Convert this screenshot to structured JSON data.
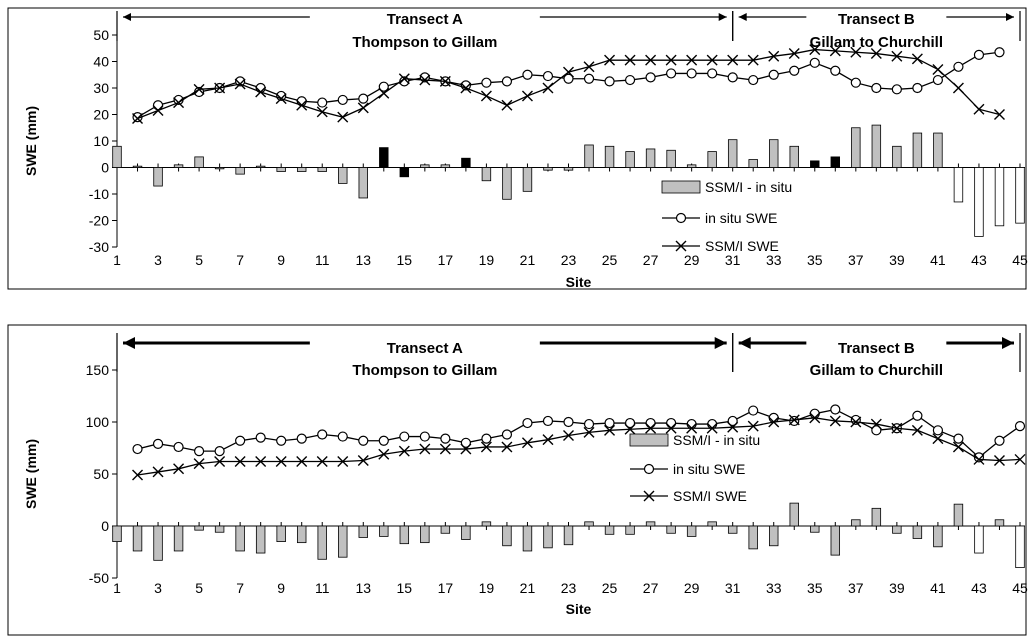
{
  "chart_data": [
    {
      "type": "bar+line",
      "xlabel": "Site",
      "ylabel": "SWE (mm)",
      "ylim": [
        -30,
        50
      ],
      "yticks": [
        50,
        40,
        30,
        20,
        10,
        0,
        -10,
        -20,
        -30
      ],
      "xlim": [
        1,
        45
      ],
      "xticks": [
        "1",
        "3",
        "5",
        "7",
        "9",
        "11",
        "13",
        "15",
        "17",
        "19",
        "21",
        "23",
        "25",
        "27",
        "29",
        "31",
        "33",
        "35",
        "37",
        "39",
        "41",
        "43",
        "45"
      ],
      "transects": [
        {
          "title": "Transect A",
          "subtitle": "Thompson to Gillam",
          "from": 1,
          "to": 31
        },
        {
          "title": "Transect B",
          "subtitle": "Gillam to Churchill",
          "from": 31,
          "to": 45
        }
      ],
      "legend": {
        "bars": "SSM/I - in situ",
        "insitu": "in situ SWE",
        "ssmi": "SSM/I SWE"
      },
      "series": [
        {
          "name": "SSM/I - in situ",
          "kind": "bar",
          "x": [
            1,
            2,
            3,
            4,
            5,
            6,
            7,
            8,
            9,
            10,
            11,
            12,
            13,
            14,
            15,
            16,
            17,
            18,
            19,
            20,
            21,
            22,
            23,
            24,
            25,
            26,
            27,
            28,
            29,
            30,
            31,
            32,
            33,
            34,
            35,
            36,
            37,
            38,
            39,
            40,
            41,
            42,
            43,
            44,
            45
          ],
          "values": [
            8,
            0.5,
            -7,
            1,
            4,
            -0.5,
            -2.5,
            0.5,
            -1.5,
            -1.5,
            -1.5,
            -6,
            -11.5,
            7.5,
            -3.5,
            1,
            1,
            3.5,
            -5,
            -12,
            -9,
            -1,
            -1,
            8.5,
            8,
            6,
            7,
            6.5,
            1,
            6,
            10.5,
            3,
            10.5,
            8,
            2.5,
            4,
            15,
            16,
            8,
            13,
            13,
            -13,
            -26,
            -22,
            -21
          ],
          "highlight": [
            14,
            15,
            18,
            35,
            36
          ]
        },
        {
          "name": "in situ SWE",
          "kind": "line",
          "marker": "circle",
          "x": [
            2,
            3,
            4,
            5,
            6,
            7,
            8,
            9,
            10,
            11,
            12,
            13,
            14,
            15,
            16,
            17,
            18,
            19,
            20,
            21,
            22,
            23,
            24,
            25,
            26,
            27,
            28,
            29,
            30,
            31,
            32,
            33,
            34,
            35,
            36,
            37,
            38,
            39,
            40,
            41,
            42,
            43,
            44
          ],
          "values": [
            19,
            23.5,
            25.5,
            28.5,
            30,
            32.5,
            30,
            27,
            25,
            24.5,
            25.5,
            26,
            30.5,
            32.5,
            34,
            32.5,
            31,
            32,
            32.5,
            35,
            34.5,
            33.5,
            33.5,
            32.5,
            33,
            34,
            35.5,
            35.5,
            35.5,
            34,
            33,
            35,
            36.5,
            39.5,
            36.5,
            32,
            30,
            29.5,
            30,
            33,
            38,
            42.5,
            43.5
          ]
        },
        {
          "name": "SSM/I SWE",
          "kind": "line",
          "marker": "x",
          "x": [
            2,
            3,
            4,
            5,
            6,
            7,
            8,
            9,
            10,
            11,
            12,
            13,
            14,
            15,
            16,
            17,
            18,
            19,
            20,
            21,
            22,
            23,
            24,
            25,
            26,
            27,
            28,
            29,
            30,
            31,
            32,
            33,
            34,
            35,
            36,
            37,
            38,
            39,
            40,
            41,
            42,
            43,
            44
          ],
          "values": [
            18.5,
            21.5,
            24.5,
            29.5,
            30,
            31.5,
            28.5,
            26,
            23.5,
            21,
            19,
            22.5,
            28,
            33.5,
            33,
            32.5,
            30,
            27,
            23.5,
            27,
            30,
            36,
            38,
            40.5,
            40.5,
            40.5,
            40.5,
            40.5,
            40.5,
            40.5,
            40.5,
            42,
            43,
            44.5,
            44,
            43.5,
            43,
            42,
            41,
            37,
            30,
            22,
            20
          ]
        }
      ]
    },
    {
      "type": "bar+line",
      "xlabel": "Site",
      "ylabel": "SWE (mm)",
      "ylim": [
        -50,
        150
      ],
      "yticks": [
        150,
        100,
        50,
        0,
        -50
      ],
      "xlim": [
        1,
        45
      ],
      "xticks": [
        "1",
        "3",
        "5",
        "7",
        "9",
        "11",
        "13",
        "15",
        "17",
        "19",
        "21",
        "23",
        "25",
        "27",
        "29",
        "31",
        "33",
        "35",
        "37",
        "39",
        "41",
        "43",
        "45"
      ],
      "transects": [
        {
          "title": "Transect A",
          "subtitle": "Thompson to Gillam",
          "from": 1,
          "to": 31
        },
        {
          "title": "Transect B",
          "subtitle": "Gillam to Churchill",
          "from": 31,
          "to": 45
        }
      ],
      "legend": {
        "bars": "SSM/I - in situ",
        "insitu": "in situ SWE",
        "ssmi": "SSM/I SWE"
      },
      "series": [
        {
          "name": "SSM/I - in situ",
          "kind": "bar",
          "x": [
            1,
            2,
            3,
            4,
            5,
            6,
            7,
            8,
            9,
            10,
            11,
            12,
            13,
            14,
            15,
            16,
            17,
            18,
            19,
            20,
            21,
            22,
            23,
            24,
            25,
            26,
            27,
            28,
            29,
            30,
            31,
            32,
            33,
            34,
            35,
            36,
            37,
            38,
            39,
            40,
            41,
            42,
            43,
            44,
            45
          ],
          "values": [
            -15,
            -24,
            -33,
            -24,
            -4,
            -6,
            -24,
            -26,
            -15,
            -16,
            -32,
            -30,
            -11,
            -10,
            -17,
            -16,
            -7,
            -13,
            4,
            -19,
            -24,
            -21,
            -18,
            4,
            -8,
            -8,
            4,
            -7,
            -10,
            4,
            -7,
            -22,
            -19,
            22,
            -6,
            -28,
            6,
            17,
            -7,
            -12,
            -20,
            21,
            -26,
            6,
            -40
          ]
        },
        {
          "name": "in situ SWE",
          "kind": "line",
          "marker": "circle",
          "x": [
            2,
            3,
            4,
            5,
            6,
            7,
            8,
            9,
            10,
            11,
            12,
            13,
            14,
            15,
            16,
            17,
            18,
            19,
            20,
            21,
            22,
            23,
            24,
            25,
            26,
            27,
            28,
            29,
            30,
            31,
            32,
            33,
            34,
            35,
            36,
            37,
            38,
            39,
            40,
            41,
            42,
            43,
            44,
            45
          ],
          "values": [
            74,
            79,
            76,
            72,
            72,
            82,
            85,
            82,
            84,
            88,
            86,
            82,
            82,
            86,
            86,
            84,
            80,
            84,
            88,
            99,
            101,
            100,
            98,
            99,
            99,
            99,
            99,
            98,
            98,
            101,
            111,
            104,
            101,
            108,
            112,
            102,
            92,
            94,
            106,
            92,
            84,
            66,
            82,
            96
          ]
        },
        {
          "name": "SSM/I SWE",
          "kind": "line",
          "marker": "x",
          "x": [
            2,
            3,
            4,
            5,
            6,
            7,
            8,
            9,
            10,
            11,
            12,
            13,
            14,
            15,
            16,
            17,
            18,
            19,
            20,
            21,
            22,
            23,
            24,
            25,
            26,
            27,
            28,
            29,
            30,
            31,
            32,
            33,
            34,
            35,
            36,
            37,
            38,
            39,
            40,
            41,
            42,
            43,
            44,
            45
          ],
          "values": [
            49,
            52,
            55,
            60,
            62,
            62,
            62,
            62,
            62,
            62,
            62,
            63,
            69,
            72,
            74,
            74,
            74,
            76,
            76,
            80,
            83,
            87,
            90,
            92,
            93,
            94,
            94,
            94,
            94,
            95,
            96,
            100,
            102,
            104,
            101,
            100,
            98,
            94,
            92,
            84,
            76,
            64,
            63,
            64
          ]
        }
      ]
    }
  ]
}
